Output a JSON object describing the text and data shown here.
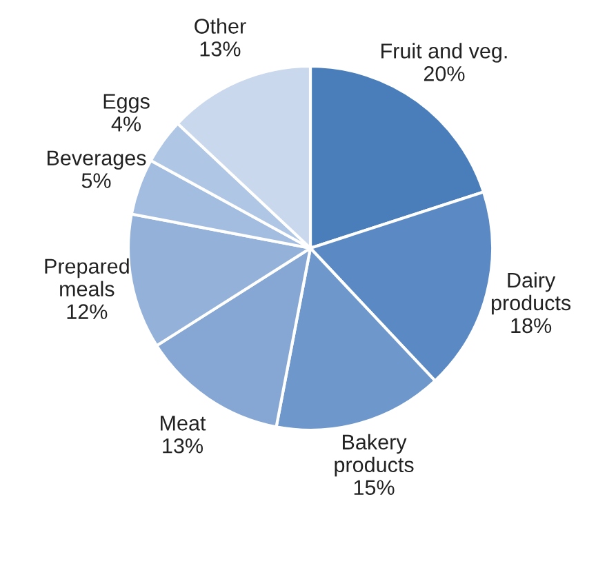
{
  "chart_data": {
    "type": "pie",
    "categories": [
      "Fruit and veg.",
      "Dairy\nproducts",
      "Bakery\nproducts",
      "Meat",
      "Prepared\nmeals",
      "Beverages",
      "Eggs",
      "Other"
    ],
    "values": [
      20,
      18,
      15,
      13,
      12,
      5,
      4,
      13
    ],
    "value_labels": [
      "20%",
      "18%",
      "15%",
      "13%",
      "12%",
      "5%",
      "4%",
      "13%"
    ],
    "colors": [
      "#4a7ebb",
      "#5b89c3",
      "#6e97cb",
      "#86a7d3",
      "#94b2d9",
      "#a3bde0",
      "#afc6e4",
      "#c9d8ec"
    ]
  }
}
